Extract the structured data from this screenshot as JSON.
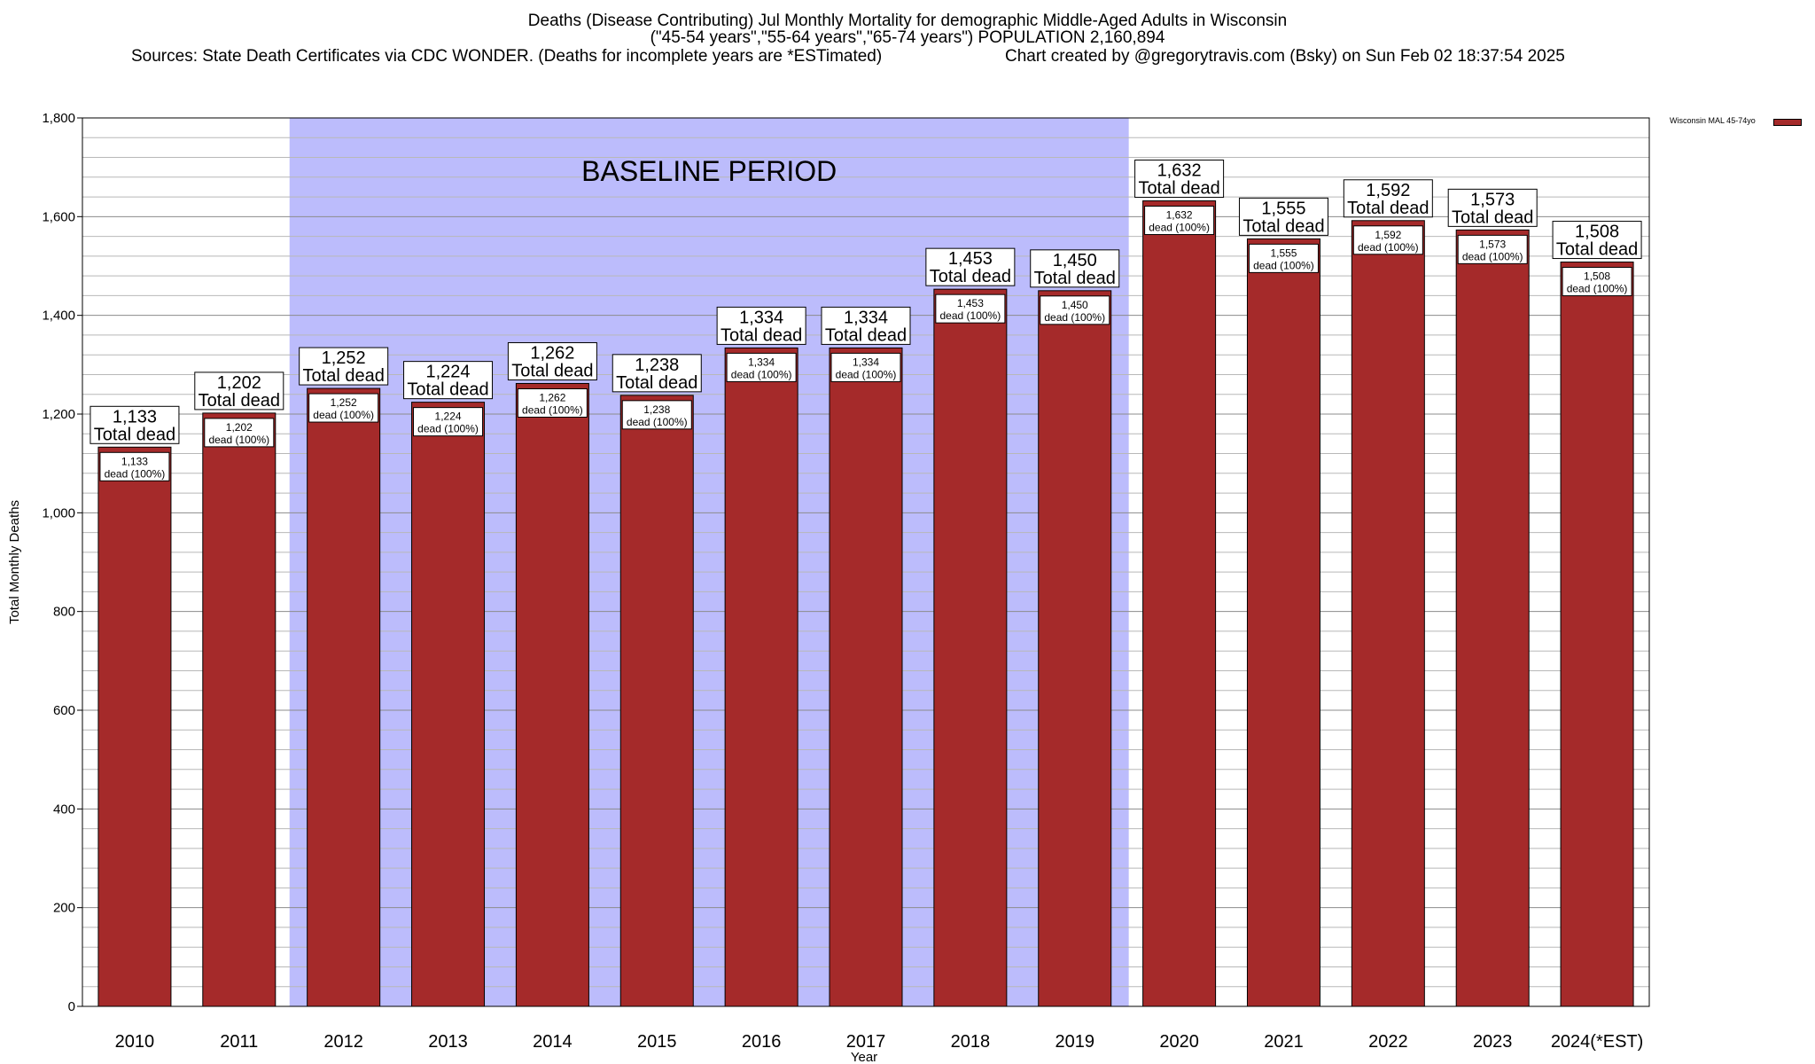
{
  "chart_data": {
    "type": "bar",
    "title": "Deaths (Disease Contributing) Jul Monthly Mortality for demographic Middle-Aged Adults in Wisconsin",
    "subtitle": "(\"45-54 years\",\"55-64 years\",\"65-74 years\") POPULATION 2,160,894",
    "sources": "Sources: State Death Certificates via CDC WONDER. (Deaths for incomplete years are *ESTimated)",
    "credit": "Chart created by @gregorytravis.com (Bsky) on Sun Feb 02 18:37:54 2025",
    "xlabel": "Year",
    "ylabel": "Total Monthly Deaths",
    "ylim": [
      0,
      1800
    ],
    "yticks": [
      "0",
      "200",
      "400",
      "600",
      "800",
      "1,000",
      "1,200",
      "1,400",
      "1,600",
      "1,800"
    ],
    "ytick_values": [
      0,
      200,
      400,
      600,
      800,
      1000,
      1200,
      1400,
      1600,
      1800
    ],
    "grid": true,
    "legend_position": "top-right",
    "categories": [
      "2010",
      "2011",
      "2012",
      "2013",
      "2014",
      "2015",
      "2016",
      "2017",
      "2018",
      "2019",
      "2020",
      "2021",
      "2022",
      "2023",
      "2024(*EST)"
    ],
    "series": [
      {
        "name": "Wisconsin MAL 45-74yo",
        "color": "#a52a2a",
        "values": [
          1133,
          1202,
          1252,
          1224,
          1262,
          1238,
          1334,
          1334,
          1453,
          1450,
          1632,
          1555,
          1592,
          1573,
          1508
        ]
      }
    ],
    "top_labels": [
      "1,133",
      "1,202",
      "1,252",
      "1,224",
      "1,262",
      "1,238",
      "1,334",
      "1,334",
      "1,453",
      "1,450",
      "1,632",
      "1,555",
      "1,592",
      "1,573",
      "1,508"
    ],
    "top_label_suffix": "Total dead",
    "inner_labels": [
      "1,133",
      "1,202",
      "1,252",
      "1,224",
      "1,262",
      "1,238",
      "1,334",
      "1,334",
      "1,453",
      "1,450",
      "1,632",
      "1,555",
      "1,592",
      "1,573",
      "1,508"
    ],
    "inner_label_suffix": "dead (100%)",
    "baseline": {
      "label": "BASELINE PERIOD",
      "start": "2012",
      "end": "2019",
      "color": "#bcbcfc"
    }
  }
}
